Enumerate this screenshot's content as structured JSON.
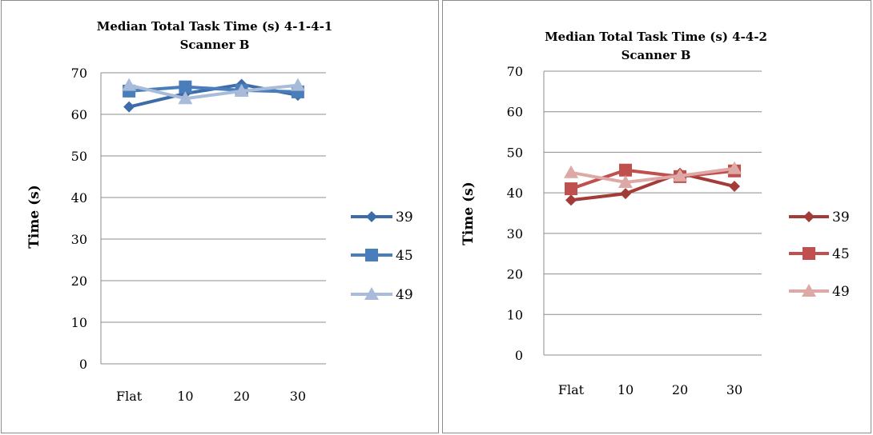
{
  "chart_data": [
    {
      "type": "line",
      "title": "Median Total Task Time (s) 4-1-4-1",
      "subtitle": "Scanner B",
      "ylabel": "Time (s)",
      "xlabel": "",
      "ylim": [
        0,
        70
      ],
      "yticks": [
        0,
        10,
        20,
        30,
        40,
        50,
        60,
        70
      ],
      "categories": [
        "Flat",
        "10",
        "20",
        "30"
      ],
      "grid": true,
      "legend": "right",
      "series": [
        {
          "name": "39",
          "values": [
            61.8,
            65.0,
            67.2,
            64.6
          ],
          "color": "#3d6ca8",
          "marker": "diamond"
        },
        {
          "name": "45",
          "values": [
            65.6,
            66.6,
            65.8,
            65.4
          ],
          "color": "#4a7ebb",
          "marker": "square"
        },
        {
          "name": "49",
          "values": [
            67.0,
            63.8,
            65.6,
            67.0
          ],
          "color": "#a8bcd9",
          "marker": "triangle"
        }
      ]
    },
    {
      "type": "line",
      "title": "Median Total Task Time (s) 4-4-2",
      "subtitle": "Scanner B",
      "ylabel": "Time (s)",
      "xlabel": "",
      "ylim": [
        0,
        70
      ],
      "yticks": [
        0,
        10,
        20,
        30,
        40,
        50,
        60,
        70
      ],
      "categories": [
        "Flat",
        "10",
        "20",
        "30"
      ],
      "grid": true,
      "legend": "right",
      "series": [
        {
          "name": "39",
          "values": [
            38.2,
            39.8,
            44.8,
            41.6
          ],
          "color": "#a33b39",
          "marker": "diamond"
        },
        {
          "name": "45",
          "values": [
            41.0,
            45.6,
            44.0,
            45.4
          ],
          "color": "#c0504d",
          "marker": "square"
        },
        {
          "name": "49",
          "values": [
            45.0,
            42.6,
            44.2,
            46.0
          ],
          "color": "#dea8a6",
          "marker": "triangle"
        }
      ]
    }
  ]
}
